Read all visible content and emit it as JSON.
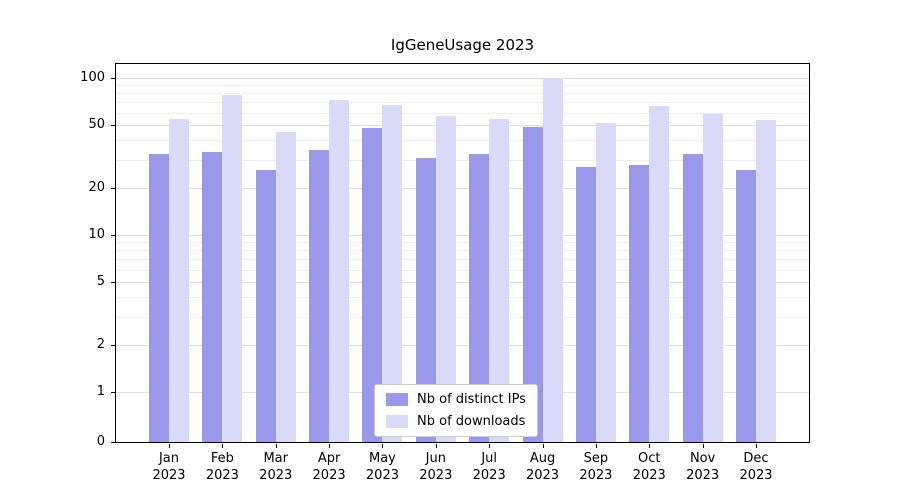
{
  "chart_data": {
    "type": "bar",
    "title": "IgGeneUsage 2023",
    "categories": [
      "Jan 2023",
      "Feb 2023",
      "Mar 2023",
      "Apr 2023",
      "May 2023",
      "Jun 2023",
      "Jul 2023",
      "Aug 2023",
      "Sep 2023",
      "Oct 2023",
      "Nov 2023",
      "Dec 2023"
    ],
    "series": [
      {
        "name": "Nb of distinct IPs",
        "color": "#9999ec",
        "values": [
          33,
          34,
          26,
          35,
          48,
          31,
          33,
          49,
          27,
          28,
          33,
          26
        ]
      },
      {
        "name": "Nb of downloads",
        "color": "#d9d9f8",
        "values": [
          55,
          78,
          45,
          72,
          67,
          57,
          55,
          100,
          52,
          66,
          59,
          54
        ]
      }
    ],
    "xlabel": "",
    "ylabel": "",
    "yscale": "symlog",
    "ylim": [
      0,
      110
    ],
    "y_ticks": [
      100,
      50,
      20,
      10,
      5,
      2,
      1,
      0
    ],
    "y_minor_ticks": [
      3,
      4,
      6,
      7,
      8,
      9,
      30,
      40,
      60,
      70,
      80,
      90
    ],
    "grid": true,
    "legend_position": "lower center"
  }
}
